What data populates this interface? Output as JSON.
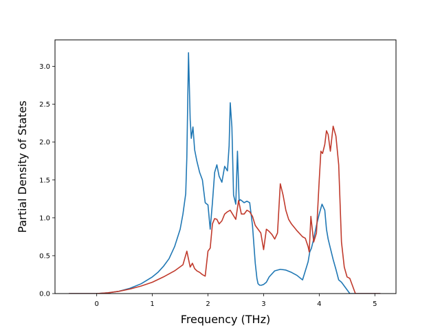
{
  "chart_data": {
    "type": "line",
    "xlabel": "Frequency (THz)",
    "ylabel": "Partial Density of States",
    "xlim": [
      -0.75,
      5.38
    ],
    "ylim": [
      0.0,
      3.35
    ],
    "xticks": [
      "0",
      "1",
      "2",
      "3",
      "4",
      "5"
    ],
    "yticks": [
      "0.0",
      "0.5",
      "1.0",
      "1.5",
      "2.0",
      "2.5",
      "3.0"
    ],
    "grid": false,
    "legend": "none",
    "series": [
      {
        "color": "#1f77b4",
        "x": [
          -0.5,
          0.0,
          0.2,
          0.4,
          0.6,
          0.8,
          1.0,
          1.1,
          1.2,
          1.3,
          1.4,
          1.5,
          1.55,
          1.6,
          1.62,
          1.65,
          1.67,
          1.68,
          1.7,
          1.73,
          1.76,
          1.8,
          1.85,
          1.9,
          1.95,
          2.0,
          2.04,
          2.08,
          2.12,
          2.16,
          2.2,
          2.25,
          2.3,
          2.35,
          2.38,
          2.4,
          2.43,
          2.46,
          2.5,
          2.53,
          2.56,
          2.58,
          2.6,
          2.65,
          2.7,
          2.75,
          2.8,
          2.85,
          2.88,
          2.9,
          2.93,
          2.96,
          3.0,
          3.05,
          3.1,
          3.2,
          3.3,
          3.4,
          3.5,
          3.6,
          3.7,
          3.75,
          3.8,
          3.83,
          3.86,
          3.9,
          3.95,
          4.0,
          4.05,
          4.1,
          4.13,
          4.16,
          4.2,
          4.25,
          4.3,
          4.35,
          4.4,
          4.5,
          4.55,
          4.6,
          4.7,
          5.1
        ],
        "values": [
          0.0,
          0.0,
          0.01,
          0.03,
          0.07,
          0.13,
          0.22,
          0.28,
          0.36,
          0.46,
          0.62,
          0.85,
          1.05,
          1.32,
          1.8,
          3.18,
          2.6,
          2.3,
          2.05,
          2.2,
          1.9,
          1.75,
          1.6,
          1.5,
          1.2,
          1.17,
          0.85,
          1.2,
          1.6,
          1.7,
          1.55,
          1.47,
          1.68,
          1.62,
          1.95,
          2.52,
          2.2,
          1.3,
          1.18,
          1.88,
          1.22,
          1.24,
          1.23,
          1.2,
          1.22,
          1.2,
          0.9,
          0.4,
          0.2,
          0.13,
          0.11,
          0.11,
          0.12,
          0.15,
          0.22,
          0.3,
          0.32,
          0.31,
          0.28,
          0.24,
          0.18,
          0.3,
          0.42,
          0.55,
          0.6,
          0.72,
          0.9,
          1.05,
          1.18,
          1.1,
          0.85,
          0.72,
          0.6,
          0.45,
          0.32,
          0.18,
          0.15,
          0.05,
          0.0,
          0.0,
          0.0,
          0.0
        ]
      },
      {
        "color": "#c0392b",
        "x": [
          -0.5,
          0.0,
          0.2,
          0.4,
          0.6,
          0.8,
          1.0,
          1.2,
          1.4,
          1.55,
          1.62,
          1.68,
          1.72,
          1.76,
          1.8,
          1.85,
          1.9,
          1.95,
          2.0,
          2.04,
          2.08,
          2.12,
          2.16,
          2.2,
          2.25,
          2.3,
          2.35,
          2.4,
          2.45,
          2.5,
          2.55,
          2.6,
          2.65,
          2.7,
          2.75,
          2.8,
          2.85,
          2.9,
          2.95,
          3.0,
          3.05,
          3.1,
          3.15,
          3.2,
          3.25,
          3.3,
          3.35,
          3.4,
          3.45,
          3.5,
          3.6,
          3.7,
          3.75,
          3.8,
          3.82,
          3.85,
          3.9,
          3.95,
          4.0,
          4.03,
          4.06,
          4.1,
          4.13,
          4.16,
          4.2,
          4.25,
          4.3,
          4.35,
          4.4,
          4.45,
          4.5,
          4.55,
          4.6,
          4.65,
          4.7,
          5.1
        ],
        "values": [
          0.0,
          0.0,
          0.01,
          0.03,
          0.06,
          0.1,
          0.15,
          0.22,
          0.3,
          0.38,
          0.56,
          0.35,
          0.4,
          0.33,
          0.3,
          0.28,
          0.25,
          0.23,
          0.56,
          0.6,
          0.92,
          0.99,
          0.98,
          0.92,
          0.96,
          1.05,
          1.08,
          1.1,
          1.04,
          0.98,
          1.23,
          1.05,
          1.05,
          1.1,
          1.08,
          1.02,
          0.9,
          0.85,
          0.8,
          0.58,
          0.85,
          0.82,
          0.78,
          0.72,
          0.8,
          1.45,
          1.3,
          1.1,
          0.98,
          0.92,
          0.83,
          0.75,
          0.73,
          0.62,
          0.55,
          1.02,
          0.68,
          0.8,
          1.5,
          1.88,
          1.85,
          1.97,
          2.15,
          2.1,
          1.88,
          2.21,
          2.08,
          1.7,
          0.68,
          0.35,
          0.22,
          0.2,
          0.1,
          0.0,
          0.0,
          0.0
        ]
      }
    ]
  }
}
